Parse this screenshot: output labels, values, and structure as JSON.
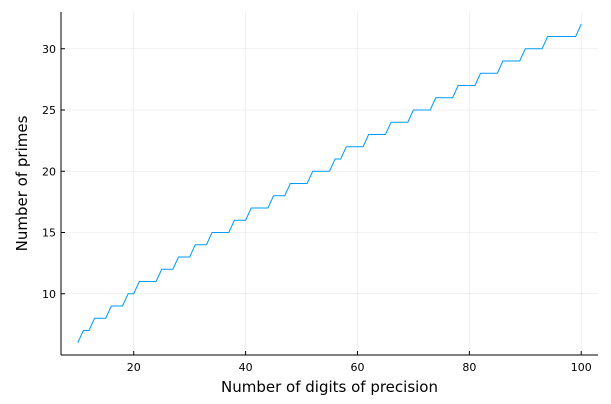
{
  "chart_data": {
    "type": "line",
    "title": "",
    "xlabel": "Number of digits of precision",
    "ylabel": "Number of primes",
    "xlim": [
      7,
      103
    ],
    "ylim": [
      5,
      33
    ],
    "xticks": [
      20,
      40,
      60,
      80,
      100
    ],
    "yticks": [
      10,
      15,
      20,
      25,
      30
    ],
    "grid": true,
    "legend": "none",
    "series": [
      {
        "color": "#009AFA",
        "x": [
          10,
          11,
          12,
          13,
          14,
          15,
          16,
          17,
          18,
          19,
          20,
          21,
          22,
          23,
          24,
          25,
          26,
          27,
          28,
          29,
          30,
          31,
          32,
          33,
          34,
          35,
          36,
          37,
          38,
          39,
          40,
          41,
          42,
          43,
          44,
          45,
          46,
          47,
          48,
          49,
          50,
          51,
          52,
          53,
          54,
          55,
          56,
          57,
          58,
          59,
          60,
          61,
          62,
          63,
          64,
          65,
          66,
          67,
          68,
          69,
          70,
          71,
          72,
          73,
          74,
          75,
          76,
          77,
          78,
          79,
          80,
          81,
          82,
          83,
          84,
          85,
          86,
          87,
          88,
          89,
          90,
          91,
          92,
          93,
          94,
          95,
          96,
          97,
          98,
          99,
          100
        ],
        "values": [
          6,
          7,
          7,
          8,
          8,
          8,
          9,
          9,
          9,
          10,
          10,
          11,
          11,
          11,
          11,
          12,
          12,
          12,
          13,
          13,
          13,
          14,
          14,
          14,
          15,
          15,
          15,
          15,
          16,
          16,
          16,
          17,
          17,
          17,
          17,
          18,
          18,
          18,
          19,
          19,
          19,
          19,
          20,
          20,
          20,
          20,
          21,
          21,
          22,
          22,
          22,
          22,
          23,
          23,
          23,
          23,
          24,
          24,
          24,
          24,
          25,
          25,
          25,
          25,
          26,
          26,
          26,
          26,
          27,
          27,
          27,
          27,
          28,
          28,
          28,
          28,
          29,
          29,
          29,
          29,
          30,
          30,
          30,
          30,
          31,
          31,
          31,
          31,
          31,
          31,
          32
        ]
      }
    ]
  }
}
